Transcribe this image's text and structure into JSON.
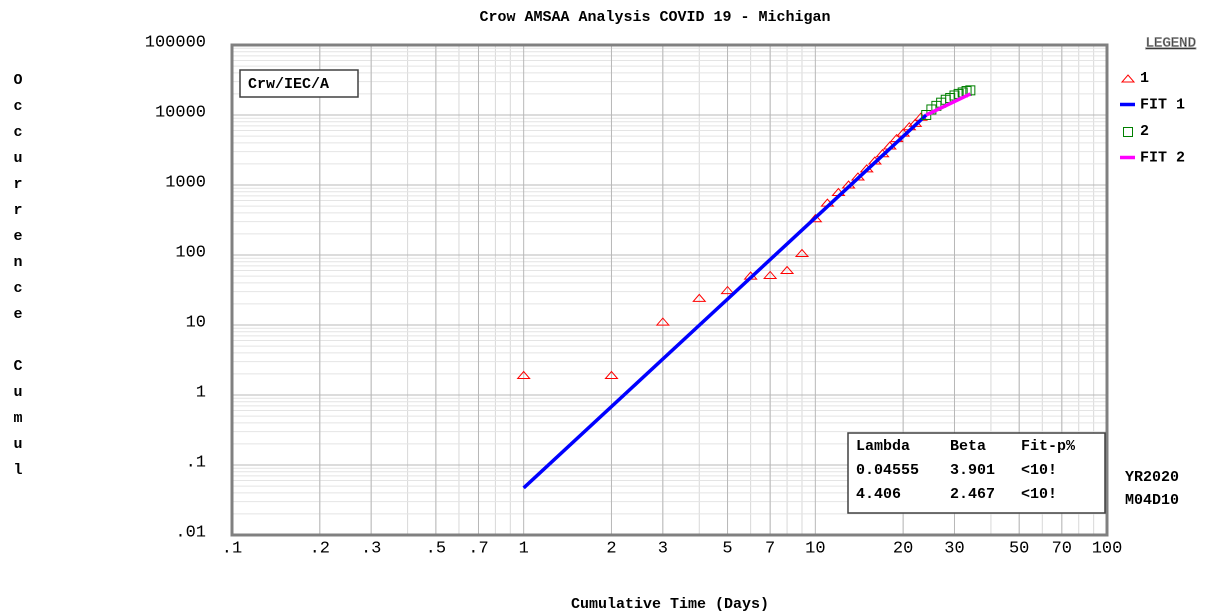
{
  "chart_data": {
    "type": "scatter",
    "title": "Crow AMSAA Analysis COVID 19 - Michigan",
    "xlabel": "Cumulative Time (Days)",
    "ylabel": "Occurrence Cumul",
    "log_x": true,
    "log_y": true,
    "grid": true,
    "xlim": [
      0.1,
      100
    ],
    "ylim": [
      0.01,
      100000
    ],
    "xticks": [
      {
        "value": 0.1,
        "label": ".1"
      },
      {
        "value": 0.2,
        "label": ".2"
      },
      {
        "value": 0.3,
        "label": ".3"
      },
      {
        "value": 0.5,
        "label": ".5"
      },
      {
        "value": 0.7,
        "label": ".7"
      },
      1,
      2,
      3,
      5,
      7,
      10,
      20,
      30,
      50,
      70,
      100
    ],
    "yticks": [
      100000,
      10000,
      1000,
      100,
      10,
      1,
      {
        "value": 0.1,
        "label": ".1"
      },
      {
        "value": 0.01,
        "label": ".01"
      }
    ],
    "annotation": "Crw/IEC/A",
    "legend_title": "LEGEND",
    "legend_position": "right",
    "series": [
      {
        "name": "1",
        "type": "scatter",
        "marker": "triangle",
        "color": "#ff0000",
        "x": [
          1,
          2,
          3,
          4,
          5,
          6,
          7,
          8,
          9,
          10,
          11,
          12,
          13,
          14,
          15,
          16,
          17,
          18,
          19,
          20,
          21,
          22,
          23
        ],
        "values": [
          1.9,
          1.9,
          11,
          24,
          31,
          50,
          51,
          60,
          105,
          330,
          550,
          780,
          1000,
          1300,
          1700,
          2200,
          2800,
          3600,
          4600,
          5500,
          6800,
          7600,
          9300
        ]
      },
      {
        "name": "FIT 1",
        "type": "line",
        "color": "#0000ff",
        "x": [
          1,
          24
        ],
        "values": [
          0.047,
          10000
        ]
      },
      {
        "name": "2",
        "type": "scatter",
        "marker": "square",
        "color": "#008000",
        "x": [
          24,
          25,
          26,
          27,
          28,
          29,
          30,
          31,
          32,
          33,
          34
        ],
        "values": [
          10000,
          12000,
          13500,
          15000,
          16500,
          17500,
          19000,
          20000,
          21000,
          22000,
          22500
        ]
      },
      {
        "name": "FIT 2",
        "type": "line",
        "color": "#ff00ff",
        "x": [
          24,
          34
        ],
        "values": [
          10000,
          20000
        ]
      }
    ],
    "stats": {
      "columns": [
        "Lambda",
        "Beta",
        "Fit-p%"
      ],
      "rows": [
        [
          "0.04555",
          "3.901",
          "<10!"
        ],
        [
          "4.406",
          "2.467",
          "<10!"
        ]
      ]
    },
    "date_labels": [
      "YR2020",
      "M04D10"
    ]
  }
}
